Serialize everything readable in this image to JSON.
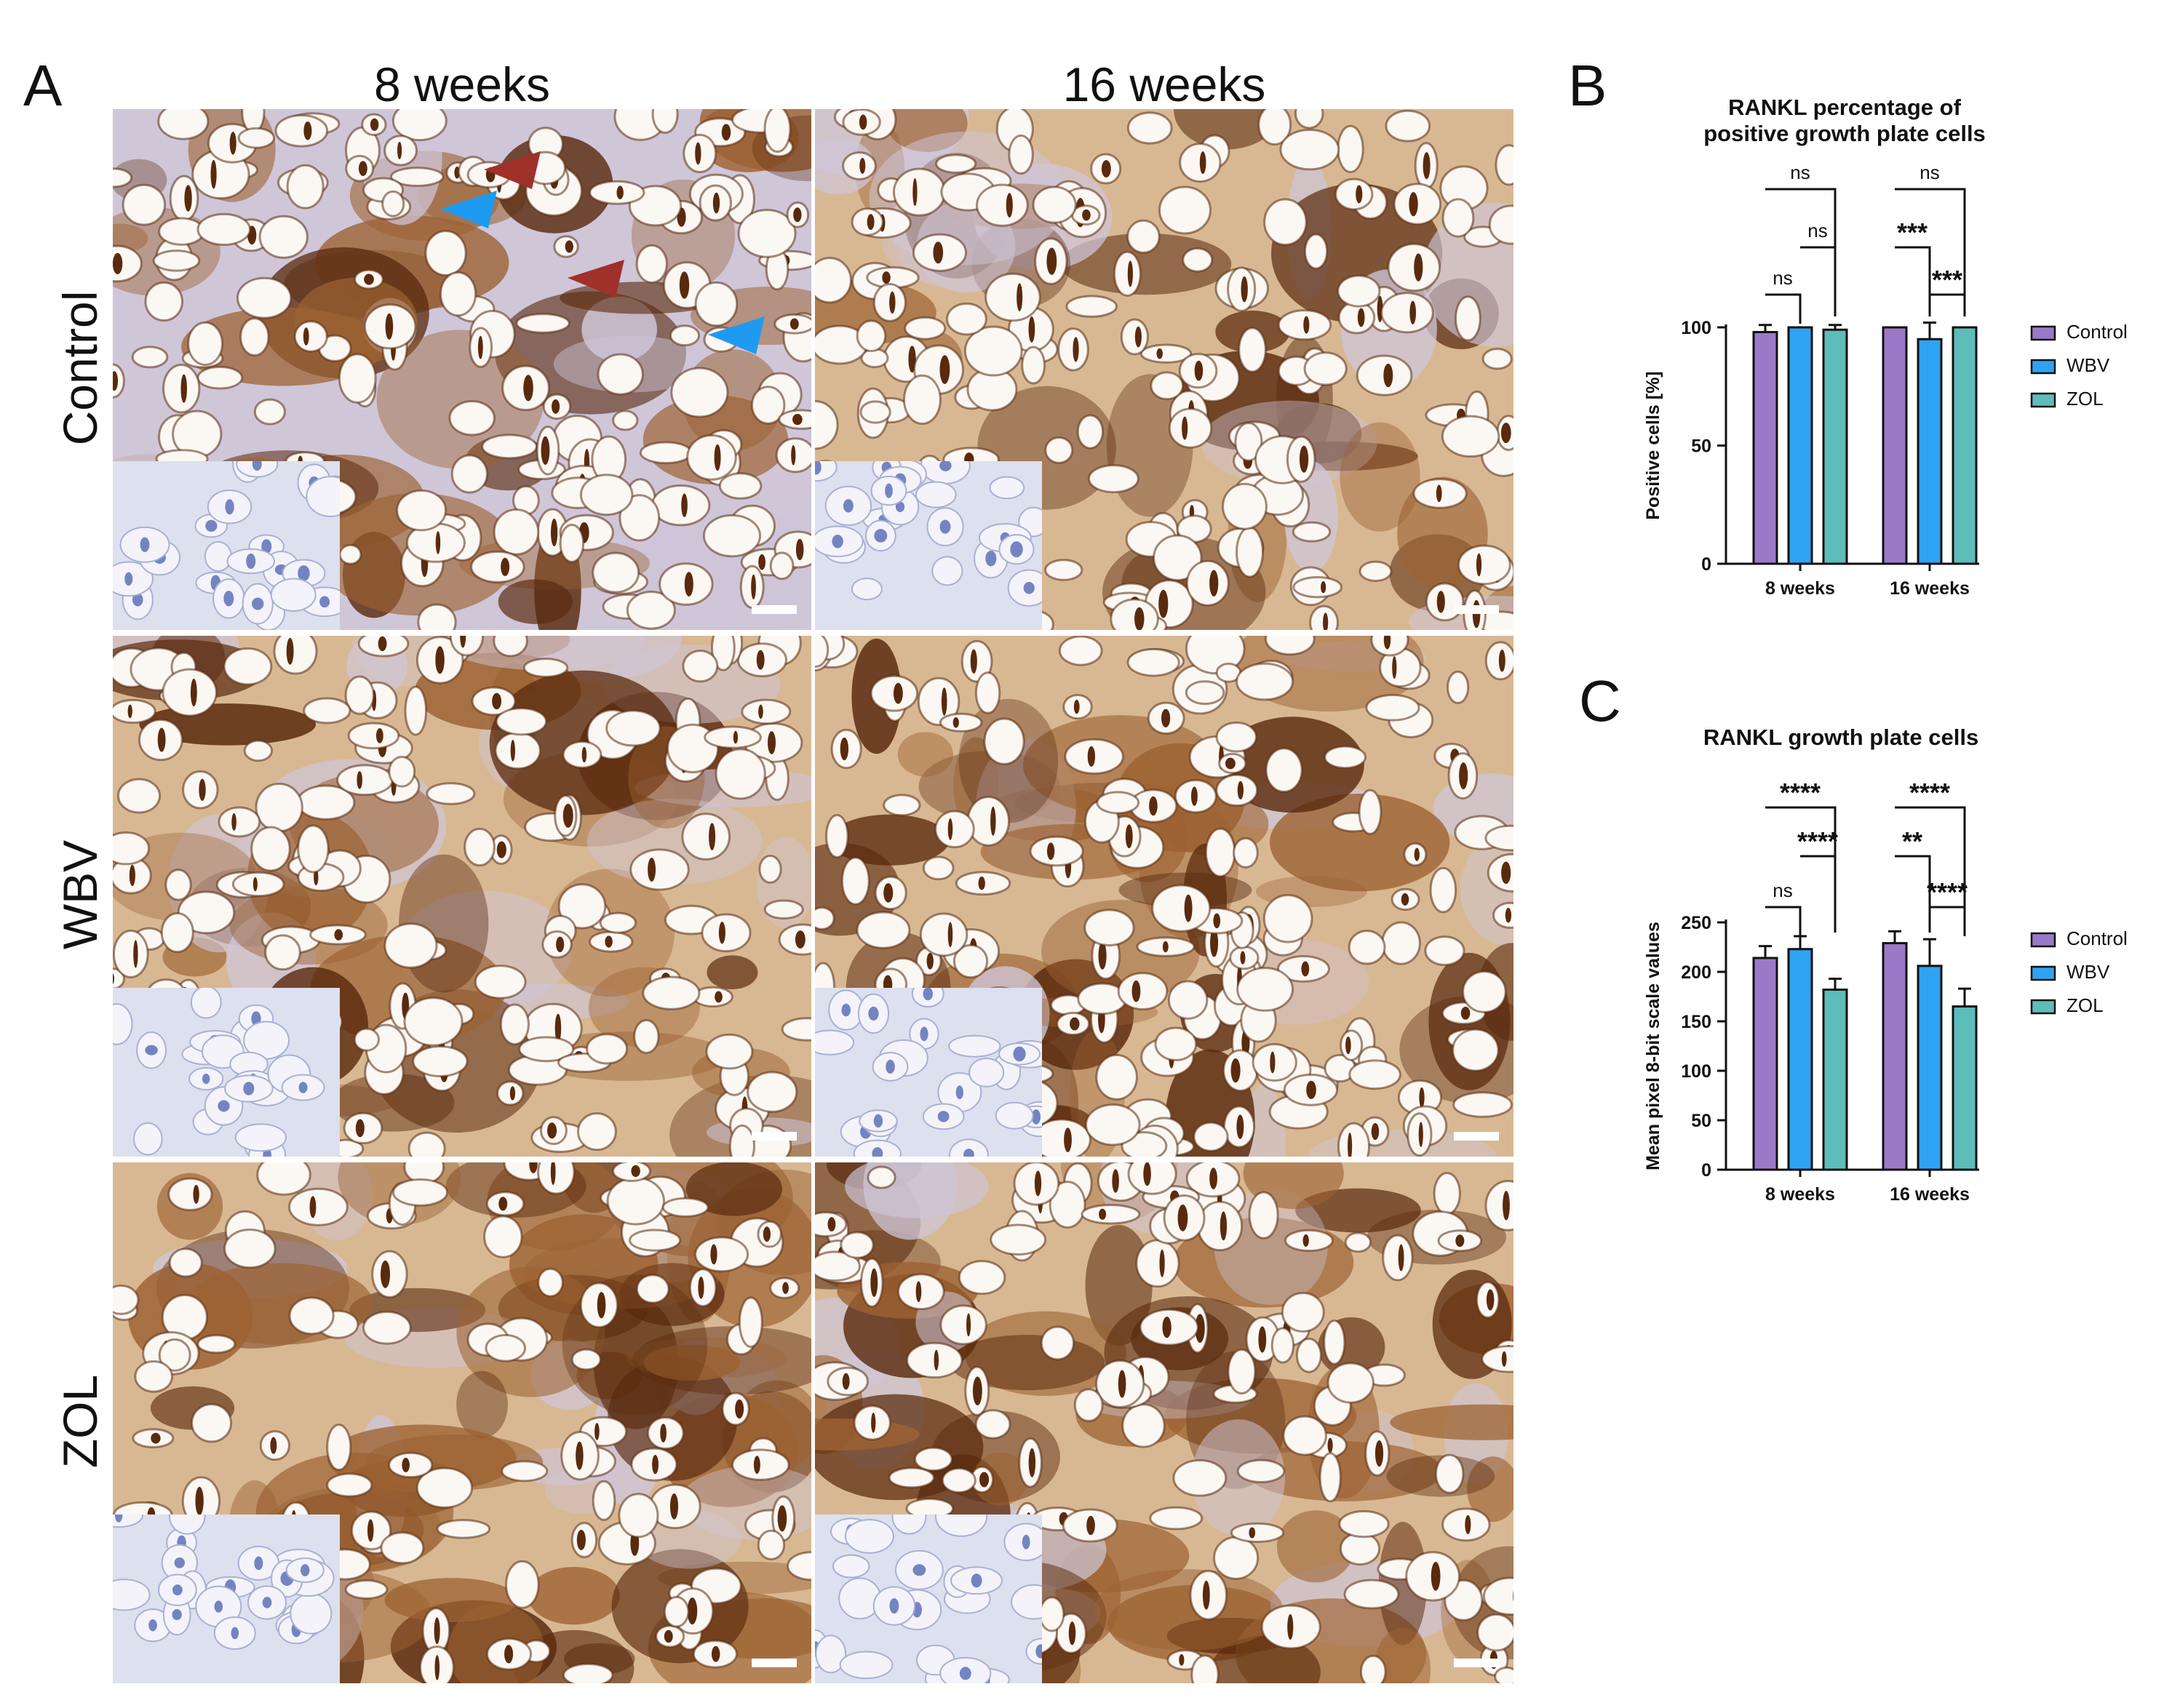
{
  "panel_labels": {
    "a": "A",
    "b": "B",
    "c": "C"
  },
  "columns": [
    "8 weeks",
    "16 weeks"
  ],
  "rows": [
    "Control",
    "WBV",
    "ZOL"
  ],
  "colors": {
    "control": "#9a79c9",
    "wbv": "#2ea3f2",
    "zol": "#5cbdbb",
    "stain_dark": "#5a2a0e",
    "stain_mid": "#9c6232",
    "stain_light": "#d8b893",
    "matrix": "#cfc6d8",
    "inset_bg": "#dde0ee",
    "nucleus": "#5468b4",
    "arrow_red": "#a0302a",
    "arrow_blue": "#1e9bf0"
  },
  "chart_data": [
    {
      "panel": "B",
      "type": "bar",
      "title": "RANKL percentage of positive growth plate cells",
      "title_lines": [
        "RANKL percentage of",
        "positive growth plate cells"
      ],
      "xlabel": "",
      "ylabel": "Positive cells [%]",
      "ylim": [
        0,
        100
      ],
      "yticks": [
        "0",
        "50",
        "100"
      ],
      "categories": [
        "8 weeks",
        "16 weeks"
      ],
      "series": [
        {
          "name": "Control",
          "values": [
            98,
            100
          ],
          "errors": [
            3,
            0
          ]
        },
        {
          "name": "WBV",
          "values": [
            100,
            95
          ],
          "errors": [
            0,
            7
          ]
        },
        {
          "name": "ZOL",
          "values": [
            99,
            100
          ],
          "errors": [
            2,
            0
          ]
        }
      ],
      "significance": [
        {
          "group": "8 weeks",
          "pair": [
            "Control",
            "ZOL"
          ],
          "label": "ns"
        },
        {
          "group": "8 weeks",
          "pair": [
            "WBV",
            "ZOL"
          ],
          "label": "ns"
        },
        {
          "group": "8 weeks",
          "pair": [
            "Control",
            "WBV"
          ],
          "label": "ns"
        },
        {
          "group": "16 weeks",
          "pair": [
            "Control",
            "ZOL"
          ],
          "label": "ns"
        },
        {
          "group": "16 weeks",
          "pair": [
            "Control",
            "WBV"
          ],
          "label": "***"
        },
        {
          "group": "16 weeks",
          "pair": [
            "WBV",
            "ZOL"
          ],
          "label": "***"
        }
      ],
      "legend": [
        "Control",
        "WBV",
        "ZOL"
      ],
      "legend_position": "right",
      "grid": false
    },
    {
      "panel": "C",
      "type": "bar",
      "title": "RANKL growth plate cells",
      "title_lines": [
        "RANKL growth plate cells"
      ],
      "xlabel": "",
      "ylabel": "Mean pixel 8-bit scale values",
      "ylim": [
        0,
        250
      ],
      "yticks": [
        "0",
        "50",
        "100",
        "150",
        "200",
        "250"
      ],
      "categories": [
        "8 weeks",
        "16 weeks"
      ],
      "series": [
        {
          "name": "Control",
          "values": [
            214,
            229
          ],
          "errors": [
            12,
            12
          ]
        },
        {
          "name": "WBV",
          "values": [
            223,
            206
          ],
          "errors": [
            13,
            27
          ]
        },
        {
          "name": "ZOL",
          "values": [
            182,
            165
          ],
          "errors": [
            11,
            18
          ]
        }
      ],
      "significance": [
        {
          "group": "8 weeks",
          "pair": [
            "Control",
            "ZOL"
          ],
          "label": "****"
        },
        {
          "group": "8 weeks",
          "pair": [
            "WBV",
            "ZOL"
          ],
          "label": "****"
        },
        {
          "group": "8 weeks",
          "pair": [
            "Control",
            "WBV"
          ],
          "label": "ns"
        },
        {
          "group": "16 weeks",
          "pair": [
            "Control",
            "ZOL"
          ],
          "label": "****"
        },
        {
          "group": "16 weeks",
          "pair": [
            "Control",
            "WBV"
          ],
          "label": "**"
        },
        {
          "group": "16 weeks",
          "pair": [
            "WBV",
            "ZOL"
          ],
          "label": "****"
        }
      ],
      "legend": [
        "Control",
        "WBV",
        "ZOL"
      ],
      "legend_position": "right",
      "grid": false
    }
  ]
}
